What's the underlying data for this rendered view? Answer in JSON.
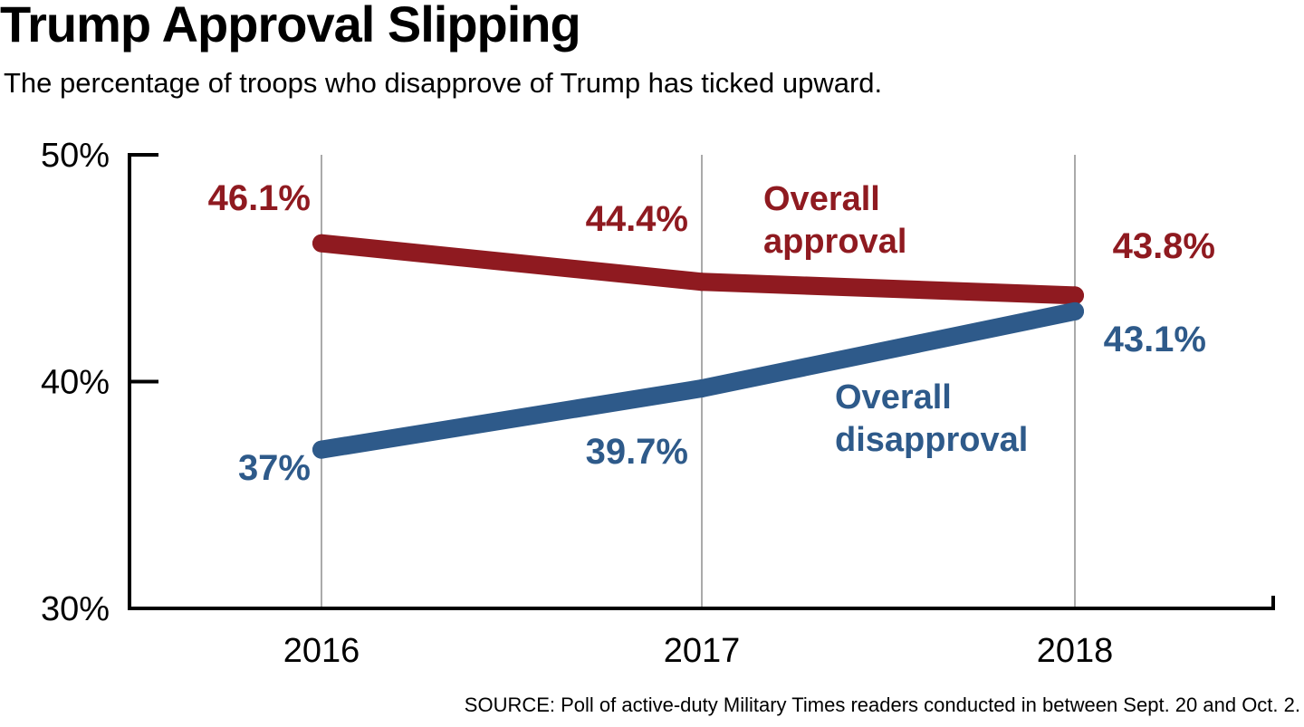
{
  "header": {
    "title": "Trump Approval Slipping",
    "subtitle": "The percentage of troops who disapprove of Trump has ticked upward."
  },
  "footer": {
    "source": "SOURCE: Poll of active-duty Military Times readers conducted in between Sept. 20 and Oct. 2."
  },
  "colors": {
    "approval": "#8f1a20",
    "disapproval": "#2e5a8a",
    "axis": "#000000",
    "grid": "#aaaaaa"
  },
  "chart_data": {
    "type": "line",
    "title": "Trump Approval Slipping",
    "subtitle": "The percentage of troops who disapprove of Trump has ticked upward.",
    "x": [
      "2016",
      "2017",
      "2018"
    ],
    "ylim": [
      30,
      50
    ],
    "yticks": [
      30,
      40,
      50
    ],
    "ytick_labels": [
      "30%",
      "40%",
      "50%"
    ],
    "grid": "vertical",
    "series": [
      {
        "name": "Overall approval",
        "label_lines": [
          "Overall",
          "approval"
        ],
        "color": "#8f1a20",
        "values": [
          46.1,
          44.4,
          43.8
        ],
        "value_labels": [
          "46.1%",
          "44.4%",
          "43.8%"
        ]
      },
      {
        "name": "Overall disapproval",
        "label_lines": [
          "Overall",
          "disapproval"
        ],
        "color": "#2e5a8a",
        "values": [
          37,
          39.7,
          43.1
        ],
        "value_labels": [
          "37%",
          "39.7%",
          "43.1%"
        ]
      }
    ]
  }
}
